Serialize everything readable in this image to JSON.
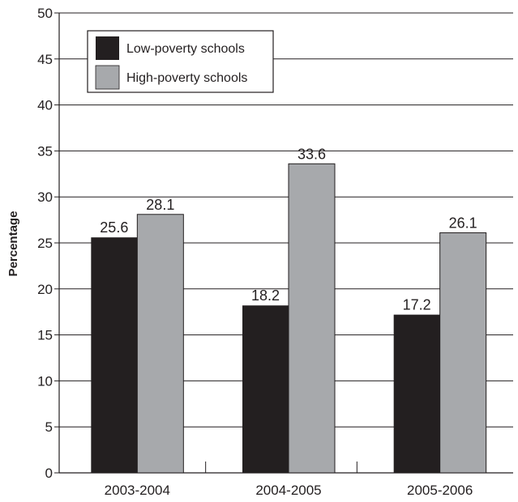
{
  "chart_data": {
    "type": "bar",
    "title": "",
    "xlabel": "",
    "ylabel": "Percentage",
    "ylim": [
      0,
      50
    ],
    "yticks": [
      0,
      5,
      10,
      15,
      20,
      25,
      30,
      35,
      40,
      45,
      50
    ],
    "grid": "horizontal",
    "legend": "top-left",
    "categories": [
      "2003-2004",
      "2004-2005",
      "2005-2006"
    ],
    "series": [
      {
        "name": "Low-poverty schools",
        "color": "#231f20",
        "values": [
          25.6,
          18.2,
          17.2
        ],
        "labels": [
          "25.6",
          "18.2",
          "17.2"
        ]
      },
      {
        "name": "High-poverty schools",
        "color": "#a7a9ac",
        "values": [
          28.1,
          33.6,
          26.1
        ],
        "labels": [
          "28.1",
          "33.6",
          "26.1"
        ]
      }
    ]
  }
}
